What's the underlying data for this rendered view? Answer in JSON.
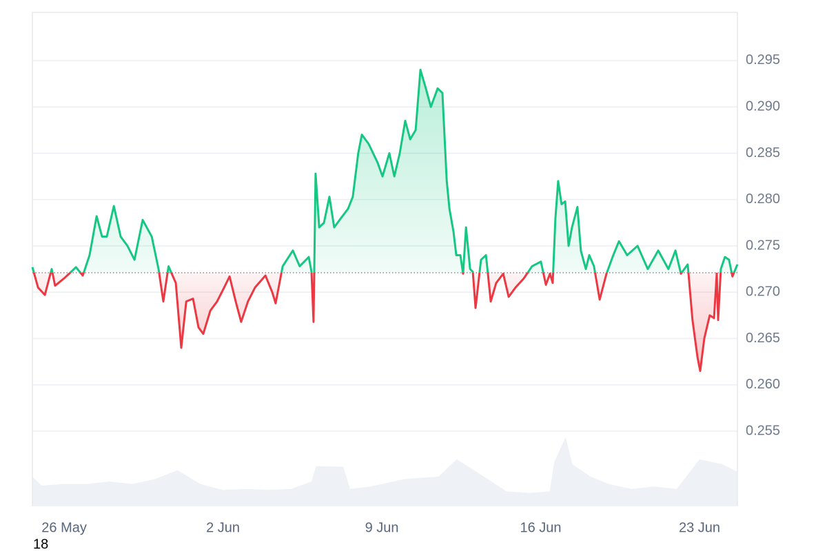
{
  "chart_data": {
    "type": "line",
    "x": [
      -1.4,
      -1.15,
      -0.85,
      -0.55,
      -0.4,
      0,
      0.22,
      0.52,
      0.82,
      1.12,
      1.43,
      1.67,
      1.88,
      2.19,
      2.49,
      2.79,
      3.1,
      3.46,
      3.86,
      4.16,
      4.37,
      4.6,
      4.92,
      5.16,
      5.38,
      5.68,
      5.92,
      6.13,
      6.44,
      6.74,
      7.05,
      7.29,
      7.56,
      7.8,
      8.1,
      8.41,
      8.87,
      9.17,
      9.32,
      9.63,
      10.08,
      10.38,
      10.78,
      10.9,
      10.99,
      11.08,
      11.24,
      11.45,
      11.69,
      11.9,
      12.2,
      12.51,
      12.72,
      12.96,
      13.12,
      13.42,
      13.81,
      14.03,
      14.33,
      14.55,
      14.79,
      15.03,
      15.25,
      15.49,
      15.7,
      15.94,
      16.16,
      16.46,
      16.67,
      16.86,
      16.98,
      17.16,
      17.28,
      17.46,
      17.58,
      17.71,
      17.89,
      18.01,
      18.13,
      18.37,
      18.59,
      18.8,
      19.04,
      19.35,
      19.59,
      19.89,
      20.26,
      20.62,
      21.01,
      21.23,
      21.41,
      21.53,
      21.65,
      21.77,
      21.92,
      22.08,
      22.23,
      22.38,
      22.62,
      22.77,
      22.99,
      23.14,
      23.35,
      23.6,
      23.9,
      24.2,
      24.45,
      24.81,
      25.27,
      25.72,
      26.18,
      26.63,
      26.94,
      27.18,
      27.48,
      27.69,
      27.91,
      28.03,
      28.21,
      28.45,
      28.64,
      28.76,
      28.82,
      28.94,
      29.12,
      29.3,
      29.45,
      29.67
    ],
    "values": [
      0.2727,
      0.2705,
      0.2697,
      0.2725,
      0.2707,
      0.2715,
      0.272,
      0.2727,
      0.2718,
      0.274,
      0.2782,
      0.276,
      0.276,
      0.2793,
      0.276,
      0.275,
      0.2735,
      0.2778,
      0.276,
      0.2725,
      0.269,
      0.2728,
      0.271,
      0.264,
      0.269,
      0.2693,
      0.2662,
      0.2655,
      0.268,
      0.269,
      0.2705,
      0.2717,
      0.269,
      0.2668,
      0.269,
      0.2705,
      0.2718,
      0.27,
      0.2688,
      0.2728,
      0.2745,
      0.2728,
      0.2738,
      0.2722,
      0.2668,
      0.2828,
      0.277,
      0.2775,
      0.2803,
      0.277,
      0.278,
      0.279,
      0.2803,
      0.285,
      0.287,
      0.286,
      0.284,
      0.2825,
      0.285,
      0.2825,
      0.285,
      0.2885,
      0.2865,
      0.2875,
      0.294,
      0.292,
      0.29,
      0.292,
      0.2915,
      0.282,
      0.279,
      0.2765,
      0.274,
      0.274,
      0.272,
      0.277,
      0.2725,
      0.2722,
      0.2683,
      0.2735,
      0.274,
      0.269,
      0.271,
      0.272,
      0.2695,
      0.2705,
      0.2715,
      0.2728,
      0.2733,
      0.2708,
      0.272,
      0.271,
      0.278,
      0.282,
      0.2795,
      0.2798,
      0.275,
      0.277,
      0.2792,
      0.2745,
      0.2725,
      0.274,
      0.2728,
      0.2692,
      0.272,
      0.274,
      0.2755,
      0.274,
      0.275,
      0.2725,
      0.2745,
      0.2725,
      0.2745,
      0.272,
      0.273,
      0.267,
      0.263,
      0.2615,
      0.265,
      0.2675,
      0.2672,
      0.272,
      0.267,
      0.2725,
      0.2738,
      0.2735,
      0.2717,
      0.273
    ],
    "baseline": 0.2721,
    "color_up": "#16c784",
    "color_down": "#ea3943",
    "volume": {
      "x": [
        -1.4,
        -1,
        0,
        1,
        2,
        3,
        4,
        5,
        6,
        7,
        8,
        9,
        10,
        10.9,
        11.1,
        12.3,
        12.6,
        13.5,
        15,
        16.5,
        17.3,
        18.5,
        19.5,
        20.5,
        21.4,
        21.6,
        22.1,
        22.4,
        23.2,
        24,
        25,
        26,
        27,
        28,
        29,
        29.67
      ],
      "values": [
        0.06,
        0.042,
        0.045,
        0.045,
        0.05,
        0.045,
        0.055,
        0.073,
        0.045,
        0.033,
        0.035,
        0.033,
        0.035,
        0.05,
        0.081,
        0.08,
        0.035,
        0.04,
        0.055,
        0.06,
        0.095,
        0.06,
        0.03,
        0.027,
        0.03,
        0.09,
        0.14,
        0.085,
        0.06,
        0.045,
        0.035,
        0.04,
        0.035,
        0.095,
        0.085,
        0.07
      ],
      "color": "#eef1f5",
      "axis": "y2"
    },
    "xlim": [
      -1.4,
      29.67
    ],
    "xticks": [
      {
        "value": 0,
        "label": "26 May"
      },
      {
        "value": 7,
        "label": "2 Jun"
      },
      {
        "value": 14,
        "label": "9 Jun"
      },
      {
        "value": 21,
        "label": "16 Jun"
      },
      {
        "value": 28,
        "label": "23 Jun"
      }
    ],
    "ylim": [
      0.2469,
      0.3002
    ],
    "yticks": [
      0.255,
      {
        "value": 0.26,
        "label": "0.260"
      },
      0.265,
      {
        "value": 0.27,
        "label": "0.270"
      },
      0.275,
      {
        "value": 0.28,
        "label": "0.280"
      },
      0.285,
      {
        "value": 0.29,
        "label": "0.290"
      },
      0.295
    ],
    "y2lim": [
      0,
      1
    ],
    "grid": true,
    "corner_label": "18"
  }
}
